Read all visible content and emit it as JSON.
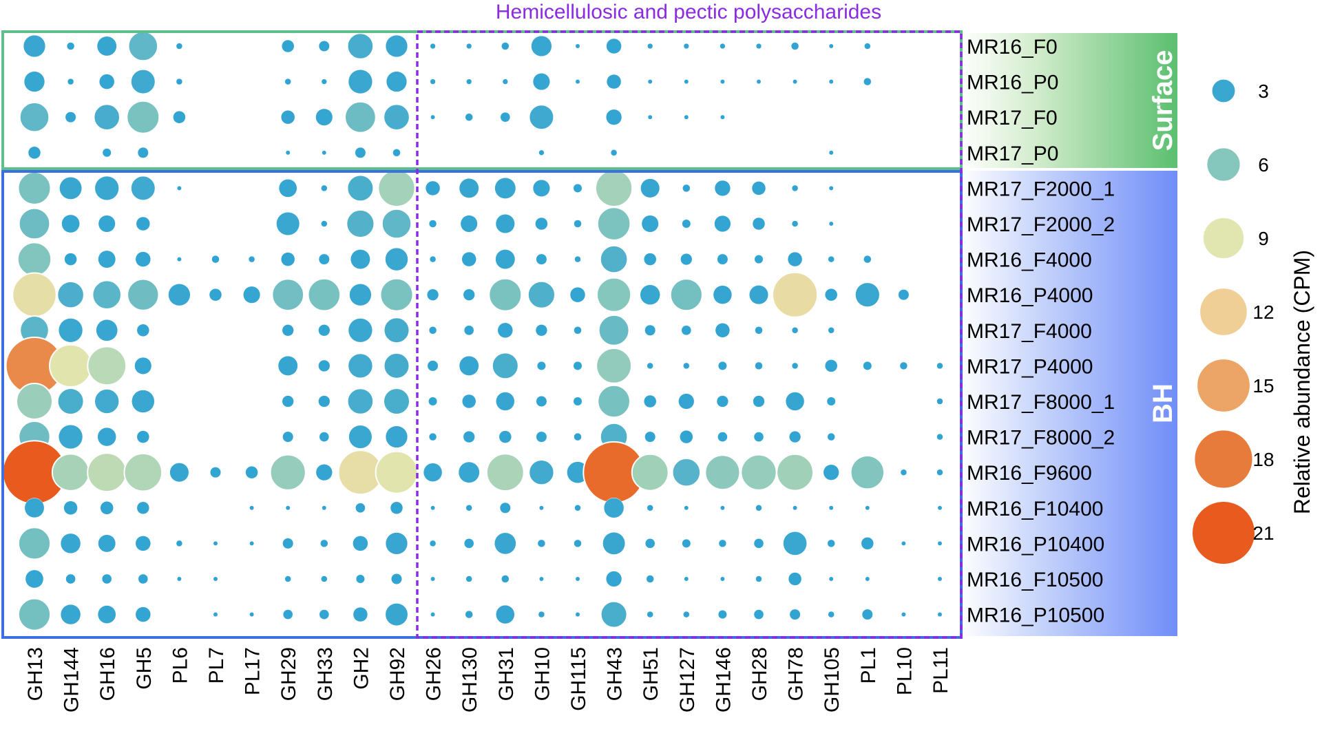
{
  "chart_data": {
    "type": "bubble-matrix",
    "title": "Hemicellulosic and pectic polysaccharides",
    "columns": [
      "GH13",
      "GH144",
      "GH16",
      "GH5",
      "PL6",
      "PL7",
      "PL17",
      "GH29",
      "GH33",
      "GH2",
      "GH92",
      "GH26",
      "GH130",
      "GH31",
      "GH10",
      "GH115",
      "GH43",
      "GH51",
      "GH127",
      "GH146",
      "GH28",
      "GH78",
      "GH105",
      "PL1",
      "PL10",
      "PL11"
    ],
    "rows": [
      "MR16_F0",
      "MR16_P0",
      "MR17_F0",
      "MR17_P0",
      "MR17_F2000_1",
      "MR17_F2000_2",
      "MR16_F4000",
      "MR16_P4000",
      "MR17_F4000",
      "MR17_P4000",
      "MR17_F8000_1",
      "MR17_F8000_2",
      "MR16_F9600",
      "MR16_F10400",
      "MR16_P10400",
      "MR16_F10500",
      "MR16_P10500"
    ],
    "groups": [
      {
        "label": "Surface",
        "row_start": 0,
        "row_end": 3,
        "color": "#5bbf6f"
      },
      {
        "label": "BH",
        "row_start": 4,
        "row_end": 16,
        "color": "#3d6fe0"
      }
    ],
    "highlight": {
      "label": "Hemicellulosic and pectic polysaccharides",
      "col_start": 11,
      "col_end": 25,
      "color": "#8a2be2"
    },
    "values": [
      [
        2.5,
        0.3,
        2.0,
        4.5,
        0.2,
        0,
        0,
        0.8,
        0.6,
        3.5,
        2.5,
        0.15,
        0.15,
        0.3,
        2.2,
        0.1,
        1.2,
        0.15,
        0.15,
        0.15,
        0.15,
        0.3,
        0.1,
        0.2,
        0,
        0
      ],
      [
        2.2,
        0.2,
        1.2,
        3.2,
        0.2,
        0,
        0,
        0.2,
        0.15,
        3.0,
        2.2,
        0.15,
        0.15,
        0.15,
        1.5,
        0.1,
        1.1,
        0.1,
        0.1,
        0.1,
        0.1,
        0.1,
        0.1,
        0.3,
        0,
        0
      ],
      [
        4.5,
        0.6,
        3.5,
        5.5,
        0.8,
        0,
        0,
        1.0,
        1.5,
        5.0,
        3.5,
        0.1,
        0.3,
        0.5,
        3.2,
        0,
        1.3,
        0.1,
        0.1,
        0.1,
        0,
        0,
        0,
        0,
        0,
        0
      ],
      [
        0.8,
        0,
        0.4,
        0.6,
        0,
        0,
        0,
        0.1,
        0.1,
        0.6,
        0.3,
        0,
        0,
        0,
        0.15,
        0,
        0.2,
        0,
        0,
        0,
        0,
        0,
        0.1,
        0,
        0,
        0
      ],
      [
        5.5,
        2.6,
        3.0,
        3.2,
        0.1,
        0,
        0,
        1.7,
        0.2,
        3.6,
        7.0,
        1.1,
        2.0,
        2.3,
        1.5,
        0.4,
        7.0,
        1.9,
        0.3,
        1.3,
        1.0,
        0.2,
        0.1,
        0,
        0,
        0
      ],
      [
        5.0,
        1.7,
        1.5,
        1.0,
        0,
        0,
        0,
        2.8,
        0.2,
        4.0,
        4.5,
        0.3,
        1.5,
        1.9,
        0.8,
        0.3,
        5.6,
        1.5,
        0.4,
        1.4,
        0.8,
        0.2,
        0.1,
        0,
        0,
        0
      ],
      [
        5.8,
        0.8,
        1.6,
        1.2,
        0.1,
        0.3,
        0.2,
        1.0,
        0.6,
        2.0,
        2.7,
        0.2,
        1.1,
        2.0,
        0.6,
        0.2,
        3.9,
        0.8,
        0.7,
        0.6,
        0.4,
        1.1,
        0.2,
        0.3,
        0,
        0
      ],
      [
        10.0,
        3.7,
        4.3,
        5.1,
        2.5,
        0.8,
        1.5,
        5.2,
        5.4,
        2.5,
        5.5,
        0.7,
        0.7,
        5.5,
        3.8,
        1.2,
        6.0,
        2.1,
        5.3,
        1.8,
        1.9,
        10.5,
        0.8,
        3.0,
        0.6,
        0
      ],
      [
        4.3,
        3.0,
        2.4,
        0.8,
        0,
        0,
        0,
        0.7,
        0.7,
        3.0,
        3.4,
        0.3,
        0.5,
        1.2,
        0.7,
        0.3,
        4.8,
        0.6,
        0.5,
        1.1,
        0.3,
        0.2,
        0.2,
        0,
        0,
        0
      ],
      [
        17.0,
        9.3,
        7.7,
        1.5,
        0,
        0,
        0,
        2.0,
        0.7,
        3.3,
        3.4,
        0.6,
        2.0,
        3.6,
        0.4,
        0.4,
        6.4,
        0.2,
        0.2,
        0.4,
        0.3,
        0.2,
        0.8,
        0.4,
        0.3,
        0.2
      ],
      [
        6.7,
        3.6,
        3.3,
        2.7,
        0,
        0,
        0,
        0.7,
        0.7,
        3.5,
        3.6,
        0.4,
        1.0,
        1.8,
        0.6,
        0.4,
        5.4,
        0.8,
        1.3,
        0.7,
        0.7,
        1.8,
        0.4,
        0,
        0,
        0.2
      ],
      [
        5.1,
        3.0,
        1.8,
        0.8,
        0,
        0,
        0,
        0.6,
        0.5,
        2.8,
        2.5,
        0.3,
        0.7,
        0.8,
        0.6,
        0.3,
        3.9,
        0.6,
        0.9,
        0.5,
        0.5,
        0.7,
        0.3,
        0,
        0,
        0.2
      ],
      [
        21.0,
        7.1,
        7.8,
        7.4,
        1.9,
        0.6,
        0.8,
        6.5,
        1.4,
        10.1,
        9.2,
        1.8,
        2.3,
        7.2,
        3.3,
        2.4,
        19.5,
        6.9,
        4.1,
        6.2,
        6.5,
        6.9,
        1.3,
        5.8,
        0.2,
        0.2
      ],
      [
        2.0,
        1.0,
        0.9,
        0.8,
        0,
        0,
        0.1,
        0.1,
        0.1,
        0.5,
        0.8,
        0.1,
        0.2,
        0.6,
        0.1,
        0.2,
        2.1,
        0.2,
        0.1,
        0.1,
        0.2,
        0.1,
        0.1,
        0.1,
        0,
        0.1
      ],
      [
        5.3,
        2.1,
        1.6,
        1.2,
        0.2,
        0.1,
        0.1,
        0.6,
        0.3,
        1.2,
        2.5,
        0.2,
        0.5,
        2.4,
        0.3,
        0.3,
        2.6,
        0.5,
        0.4,
        0.3,
        0.5,
        2.9,
        0.3,
        0.8,
        0.1,
        0.1
      ],
      [
        1.7,
        0.5,
        0.5,
        0.5,
        0.1,
        0.1,
        0,
        0.2,
        0.2,
        0.4,
        0.6,
        0.1,
        0.2,
        0.3,
        0.1,
        0.1,
        1.3,
        0.3,
        0.1,
        0.1,
        0.2,
        0.9,
        0.1,
        0.1,
        0,
        0.1
      ],
      [
        5.3,
        2.1,
        1.7,
        1.2,
        0,
        0.1,
        0.1,
        0.5,
        0.5,
        1.1,
        2.6,
        0.1,
        0.3,
        1.8,
        0.2,
        0.1,
        3.6,
        0.2,
        0.2,
        0.4,
        0.5,
        0.6,
        0.2,
        0.6,
        0.1,
        0.1
      ]
    ],
    "legend": {
      "title": "Relative abundance (CPM)",
      "placement": "right",
      "entries": [
        {
          "label": "3",
          "value": 3,
          "color": "#3aa7d0"
        },
        {
          "label": "6",
          "value": 6,
          "color": "#86c7bd"
        },
        {
          "label": "9",
          "value": 9,
          "color": "#e1e6b0"
        },
        {
          "label": "12",
          "value": 12,
          "color": "#efcf95"
        },
        {
          "label": "15",
          "value": 15,
          "color": "#eda467"
        },
        {
          "label": "18",
          "value": 18,
          "color": "#e77b3b"
        },
        {
          "label": "21",
          "value": 21,
          "color": "#e85a1d"
        }
      ]
    },
    "color_scale": [
      {
        "value": 0,
        "color": "#2fa3d3"
      },
      {
        "value": 3,
        "color": "#3aa7d0"
      },
      {
        "value": 6,
        "color": "#86c7bd"
      },
      {
        "value": 9,
        "color": "#e1e6b0"
      },
      {
        "value": 12,
        "color": "#efcf95"
      },
      {
        "value": 15,
        "color": "#eda467"
      },
      {
        "value": 18,
        "color": "#e77b3b"
      },
      {
        "value": 21,
        "color": "#e85a1d"
      }
    ]
  }
}
